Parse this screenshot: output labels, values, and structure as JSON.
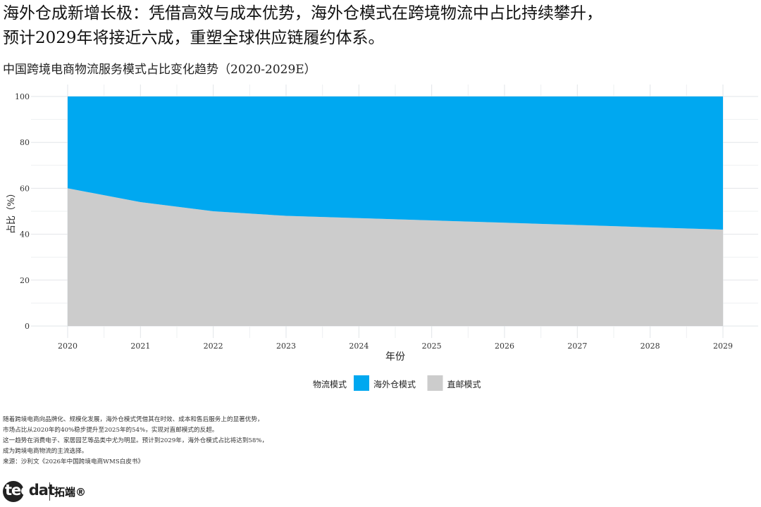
{
  "headline": {
    "line1": "海外仓成新增长极：凭借高效与成本优势，海外仓模式在跨境物流中占比持续攀升，",
    "line2": "预计2029年将接近六成，重塑全球供应链履约体系。"
  },
  "subtitle": "中国跨境电商物流服务模式占比变化趋势（2020-2029E）",
  "chart_data": {
    "type": "area",
    "stacked": true,
    "x": [
      2020,
      2021,
      2022,
      2023,
      2024,
      2025,
      2026,
      2027,
      2028,
      2029
    ],
    "xlabel": "年份",
    "ylabel": "占比（%）",
    "ylim": [
      0,
      100
    ],
    "yticks": [
      0,
      20,
      40,
      60,
      80,
      100
    ],
    "grid": true,
    "legend_position": "bottom",
    "legend_title": "物流模式",
    "series": [
      {
        "name": "直邮模式",
        "color": "#cccccc",
        "values": [
          60,
          54,
          50,
          48,
          47,
          46,
          45,
          44,
          43,
          42
        ]
      },
      {
        "name": "海外仓模式",
        "color": "#00a8f0",
        "values": [
          40,
          46,
          50,
          52,
          53,
          54,
          55,
          56,
          57,
          58
        ]
      }
    ]
  },
  "legend": {
    "title": "物流模式",
    "items": [
      {
        "label": "海外仓模式",
        "color": "#00a8f0"
      },
      {
        "label": "直邮模式",
        "color": "#cccccc"
      }
    ]
  },
  "notes": {
    "line1": "随着跨境电商向品牌化、规模化发展，海外仓模式凭借其在时效、成本和售后服务上的显著优势，",
    "line2": "市场占比从2020年的40%稳步提升至2025年的54%，实现对直邮模式的反超。",
    "line3": "这一趋势在消费电子、家居园艺等品类中尤为明显。预计到2029年，海外仓模式占比将达到58%，",
    "line4": "成为跨境电商物流的主流选择。",
    "source": "来源：沙利文《2026年中国跨境电商WMS白皮书》"
  },
  "logo": {
    "word": "tecdat",
    "cn": "拓端®"
  }
}
